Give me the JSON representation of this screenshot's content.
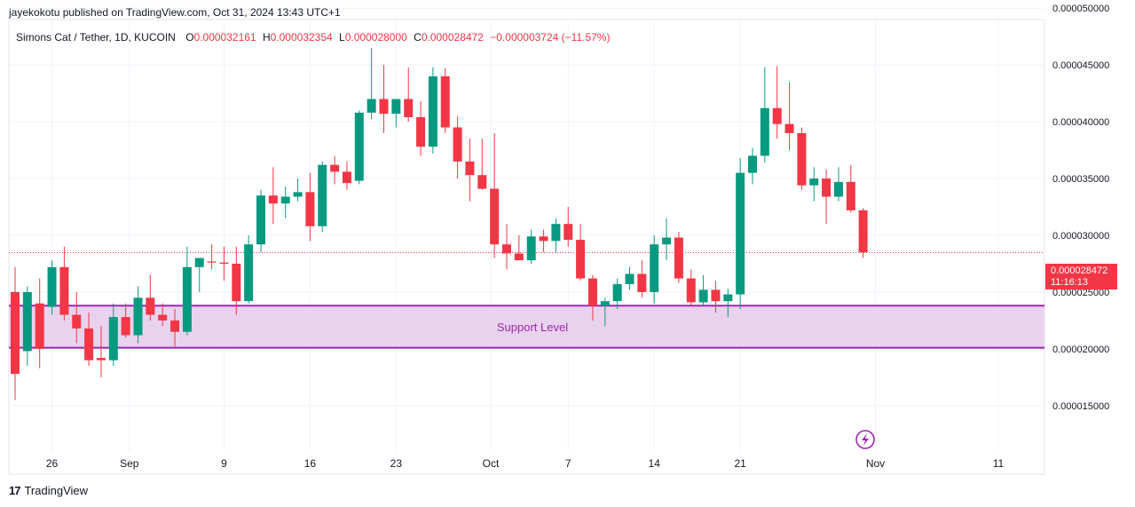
{
  "publisher": "jayekokotu published on TradingView.com, Oct 31, 2024 13:43 UTC+1",
  "legend": {
    "symbol": "Simons Cat / Tether, 1D, KUCOIN",
    "o_label": "O",
    "o_value": "0.000032161",
    "h_label": "H",
    "h_value": "0.000032354",
    "l_label": "L",
    "l_value": "0.000028000",
    "c_label": "C",
    "c_value": "0.000028472",
    "change": "−0.000003724 (−11.57%)"
  },
  "price_tag": {
    "price": "0.000028472",
    "countdown": "11:16:13"
  },
  "footer": {
    "brand": "TradingView"
  },
  "colors": {
    "up": "#089981",
    "down": "#f23645",
    "zone_fill": "#e9d2ee",
    "zone_line": "#9c27b0",
    "zone_text": "#9c27b0"
  },
  "chart_data": {
    "type": "candlestick",
    "y_axis": {
      "range": [
        1.1e-05,
        5e-05
      ],
      "ticks": [
        "0.000015000",
        "0.000020000",
        "0.000025000",
        "0.000030000",
        "0.000035000",
        "0.000040000",
        "0.000045000",
        "0.000050000"
      ]
    },
    "x_axis": {
      "ticks": [
        {
          "label": "26",
          "index": 3
        },
        {
          "label": "Sep",
          "index": 9.3
        },
        {
          "label": "9",
          "index": 17
        },
        {
          "label": "16",
          "index": 24
        },
        {
          "label": "23",
          "index": 31
        },
        {
          "label": "Oct",
          "index": 38.7
        },
        {
          "label": "7",
          "index": 45
        },
        {
          "label": "14",
          "index": 52
        },
        {
          "label": "21",
          "index": 59
        },
        {
          "label": "Nov",
          "index": 70
        },
        {
          "label": "11",
          "index": 80
        }
      ]
    },
    "annotation": {
      "label": "Support Level",
      "price_low": 2.01e-05,
      "price_high": 2.38e-05
    },
    "last_price": 2.8472e-05,
    "candles": [
      [
        2.5e-05,
        2.72e-05,
        1.55e-05,
        1.78e-05
      ],
      [
        1.98e-05,
        2.55e-05,
        1.85e-05,
        2.5e-05
      ],
      [
        2.4e-05,
        2.62e-05,
        1.83e-05,
        2e-05
      ],
      [
        2.37e-05,
        2.78e-05,
        2.3e-05,
        2.72e-05
      ],
      [
        2.72e-05,
        2.9e-05,
        2.25e-05,
        2.3e-05
      ],
      [
        2.3e-05,
        2.5e-05,
        2.05e-05,
        2.18e-05
      ],
      [
        2.18e-05,
        2.32e-05,
        1.85e-05,
        1.9e-05
      ],
      [
        1.92e-05,
        2.2e-05,
        1.75e-05,
        1.9e-05
      ],
      [
        1.9e-05,
        2.4e-05,
        1.85e-05,
        2.28e-05
      ],
      [
        2.28e-05,
        2.4e-05,
        2.1e-05,
        2.12e-05
      ],
      [
        2.12e-05,
        2.55e-05,
        2.05e-05,
        2.45e-05
      ],
      [
        2.45e-05,
        2.65e-05,
        2.25e-05,
        2.3e-05
      ],
      [
        2.3e-05,
        2.4e-05,
        2.2e-05,
        2.25e-05
      ],
      [
        2.25e-05,
        2.35e-05,
        2.02e-05,
        2.15e-05
      ],
      [
        2.15e-05,
        2.9e-05,
        2.12e-05,
        2.72e-05
      ],
      [
        2.72e-05,
        2.8e-05,
        2.5e-05,
        2.8e-05
      ],
      [
        2.77e-05,
        2.92e-05,
        2.7e-05,
        2.76e-05
      ],
      [
        2.76e-05,
        2.9e-05,
        2.6e-05,
        2.75e-05
      ],
      [
        2.75e-05,
        2.9e-05,
        2.3e-05,
        2.42e-05
      ],
      [
        2.42e-05,
        3e-05,
        2.4e-05,
        2.92e-05
      ],
      [
        2.92e-05,
        3.4e-05,
        2.85e-05,
        3.35e-05
      ],
      [
        3.35e-05,
        3.6e-05,
        3.1e-05,
        3.28e-05
      ],
      [
        3.28e-05,
        3.43e-05,
        3.15e-05,
        3.34e-05
      ],
      [
        3.34e-05,
        3.5e-05,
        3.3e-05,
        3.38e-05
      ],
      [
        3.38e-05,
        3.55e-05,
        2.95e-05,
        3.08e-05
      ],
      [
        3.08e-05,
        3.65e-05,
        3.03e-05,
        3.62e-05
      ],
      [
        3.62e-05,
        3.7e-05,
        3.45e-05,
        3.56e-05
      ],
      [
        3.56e-05,
        3.65e-05,
        3.4e-05,
        3.46e-05
      ],
      [
        3.48e-05,
        4.1e-05,
        3.45e-05,
        4.08e-05
      ],
      [
        4.08e-05,
        4.65e-05,
        4.02e-05,
        4.2e-05
      ],
      [
        4.2e-05,
        4.5e-05,
        3.9e-05,
        4.07e-05
      ],
      [
        4.07e-05,
        4.2e-05,
        3.95e-05,
        4.2e-05
      ],
      [
        4.2e-05,
        4.48e-05,
        4e-05,
        4.04e-05
      ],
      [
        4.04e-05,
        4.18e-05,
        3.7e-05,
        3.78e-05
      ],
      [
        3.78e-05,
        4.48e-05,
        3.72e-05,
        4.4e-05
      ],
      [
        4.4e-05,
        4.47e-05,
        3.9e-05,
        3.95e-05
      ],
      [
        3.95e-05,
        4.05e-05,
        3.5e-05,
        3.65e-05
      ],
      [
        3.65e-05,
        3.85e-05,
        3.3e-05,
        3.53e-05
      ],
      [
        3.53e-05,
        3.85e-05,
        3.4e-05,
        3.41e-05
      ],
      [
        3.41e-05,
        3.9e-05,
        2.8e-05,
        2.92e-05
      ],
      [
        2.92e-05,
        3.1e-05,
        2.7e-05,
        2.84e-05
      ],
      [
        2.84e-05,
        3e-05,
        2.8e-05,
        2.78e-05
      ],
      [
        2.78e-05,
        3.05e-05,
        2.75e-05,
        2.99e-05
      ],
      [
        2.99e-05,
        3.05e-05,
        2.85e-05,
        2.95e-05
      ],
      [
        2.95e-05,
        3.15e-05,
        2.85e-05,
        3.1e-05
      ],
      [
        3.1e-05,
        3.25e-05,
        2.9e-05,
        2.96e-05
      ],
      [
        2.96e-05,
        3.1e-05,
        2.6e-05,
        2.62e-05
      ],
      [
        2.62e-05,
        2.65e-05,
        2.25e-05,
        2.38e-05
      ],
      [
        2.38e-05,
        2.45e-05,
        2.2e-05,
        2.42e-05
      ],
      [
        2.42e-05,
        2.62e-05,
        2.35e-05,
        2.57e-05
      ],
      [
        2.57e-05,
        2.72e-05,
        2.52e-05,
        2.66e-05
      ],
      [
        2.66e-05,
        2.78e-05,
        2.45e-05,
        2.5e-05
      ],
      [
        2.5e-05,
        3e-05,
        2.4e-05,
        2.92e-05
      ],
      [
        2.92e-05,
        3.15e-05,
        2.78e-05,
        2.98e-05
      ],
      [
        2.98e-05,
        3.03e-05,
        2.58e-05,
        2.62e-05
      ],
      [
        2.62e-05,
        2.7e-05,
        2.38e-05,
        2.41e-05
      ],
      [
        2.41e-05,
        2.65e-05,
        2.38e-05,
        2.52e-05
      ],
      [
        2.52e-05,
        2.6e-05,
        2.32e-05,
        2.42e-05
      ],
      [
        2.42e-05,
        2.53e-05,
        2.28e-05,
        2.48e-05
      ],
      [
        2.48e-05,
        3.68e-05,
        2.35e-05,
        3.55e-05
      ],
      [
        3.55e-05,
        3.77e-05,
        3.45e-05,
        3.7e-05
      ],
      [
        3.7e-05,
        4.48e-05,
        3.64e-05,
        4.12e-05
      ],
      [
        4.12e-05,
        4.49e-05,
        3.85e-05,
        3.98e-05
      ],
      [
        3.98e-05,
        4.35e-05,
        3.75e-05,
        3.9e-05
      ],
      [
        3.9e-05,
        3.95e-05,
        3.4e-05,
        3.44e-05
      ],
      [
        3.44e-05,
        3.6e-05,
        3.3e-05,
        3.5e-05
      ],
      [
        3.5e-05,
        3.58e-05,
        3.1e-05,
        3.34e-05
      ],
      [
        3.34e-05,
        3.6e-05,
        3.3e-05,
        3.47e-05
      ],
      [
        3.47e-05,
        3.62e-05,
        3.2e-05,
        3.22e-05
      ],
      [
        3.22e-05,
        3.24e-05,
        2.8e-05,
        2.85e-05
      ]
    ]
  }
}
